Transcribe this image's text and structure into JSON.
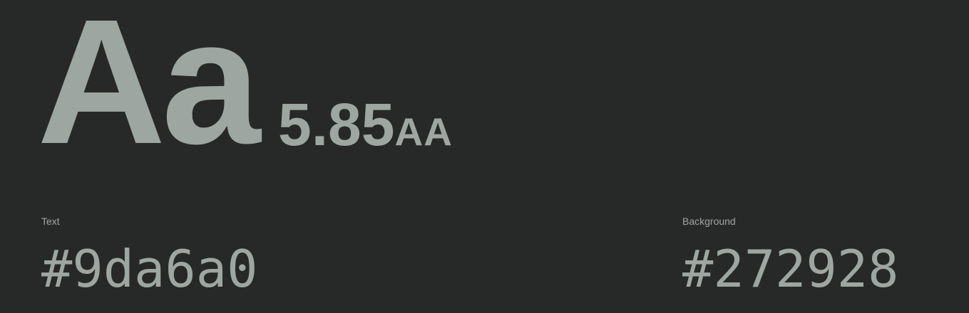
{
  "sample": {
    "glyphs": "Aa"
  },
  "contrast": {
    "ratio": "5.85",
    "rating": "AA"
  },
  "text_color": {
    "label": "Text",
    "hex": "#9da6a0"
  },
  "background_color": {
    "label": "Background",
    "hex": "#272928"
  },
  "colors": {
    "foreground": "#9da6a0",
    "background": "#272928"
  }
}
